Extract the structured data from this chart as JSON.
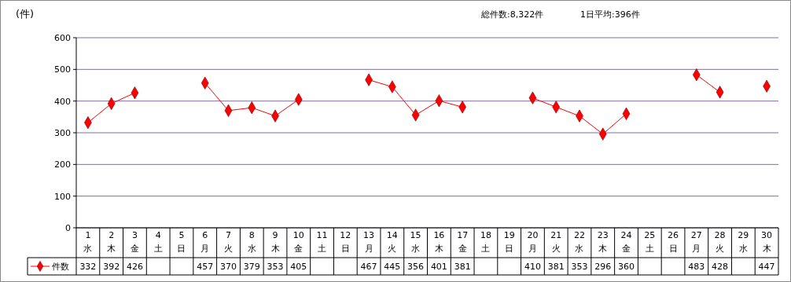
{
  "chart_data": {
    "type": "line",
    "ylabel": "(件)",
    "annotations": [
      "総件数:8,322件",
      "1日平均:396件"
    ],
    "categories": [
      "1\n水",
      "2\n木",
      "3\n金",
      "4\n土",
      "5\n日",
      "6\n月",
      "7\n火",
      "8\n水",
      "9\n木",
      "10\n金",
      "11\n土",
      "12\n日",
      "13\n月",
      "14\n火",
      "15\n水",
      "16\n木",
      "17\n金",
      "18\n土",
      "19\n日",
      "20\n月",
      "21\n火",
      "22\n水",
      "23\n木",
      "24\n金",
      "25\n土",
      "26\n日",
      "27\n月",
      "28\n火",
      "29\n水",
      "30\n木"
    ],
    "series": [
      {
        "name": "件数",
        "color": "#ff0000",
        "values": [
          332,
          392,
          426,
          null,
          null,
          457,
          370,
          379,
          353,
          405,
          null,
          null,
          467,
          445,
          356,
          401,
          381,
          null,
          null,
          410,
          381,
          353,
          296,
          360,
          null,
          null,
          483,
          428,
          null,
          447
        ]
      }
    ],
    "ylim": [
      0,
      600
    ],
    "yticks": [
      0,
      100,
      200,
      300,
      400,
      500,
      600
    ],
    "grid": "y",
    "legend": "left",
    "data_labels": true,
    "marker": "diamond",
    "line_style": "solid"
  }
}
